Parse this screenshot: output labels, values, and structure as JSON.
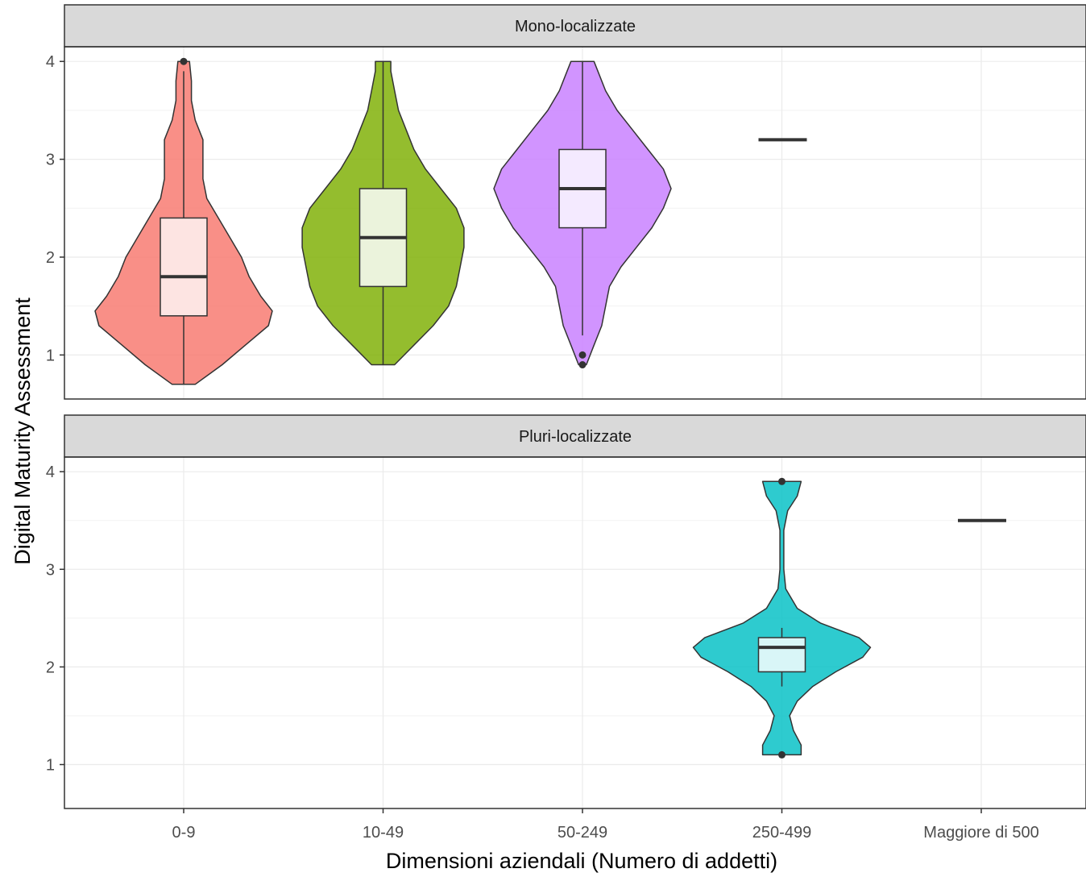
{
  "chart_data": {
    "type": "violin",
    "xlabel": "Dimensioni aziendali (Numero di addetti)",
    "ylabel": "Digital Maturity Assessment",
    "categories": [
      "0-9",
      "10-49",
      "50-249",
      "250-499",
      "Maggiore di 500"
    ],
    "y_ticks": [
      1,
      2,
      3,
      4
    ],
    "ylim": [
      0.55,
      4.15
    ],
    "grid": true,
    "legend": "none",
    "panels": [
      {
        "name": "Mono-localizzate",
        "groups": [
          {
            "category": "0-9",
            "color": "#f8766d",
            "box_fill": "#fde4e2",
            "box": {
              "q1": 1.4,
              "median": 1.8,
              "q3": 2.4,
              "whisker_low": 0.7,
              "whisker_high": 3.9
            },
            "outliers": [
              4.0
            ],
            "violin_range": [
              0.7,
              4.0
            ],
            "violin_profile": [
              [
                0.7,
                0.06
              ],
              [
                0.9,
                0.2
              ],
              [
                1.1,
                0.32
              ],
              [
                1.3,
                0.44
              ],
              [
                1.45,
                0.46
              ],
              [
                1.6,
                0.4
              ],
              [
                1.8,
                0.34
              ],
              [
                2.0,
                0.3
              ],
              [
                2.2,
                0.24
              ],
              [
                2.4,
                0.18
              ],
              [
                2.6,
                0.12
              ],
              [
                2.8,
                0.1
              ],
              [
                3.0,
                0.1
              ],
              [
                3.2,
                0.1
              ],
              [
                3.4,
                0.06
              ],
              [
                3.6,
                0.04
              ],
              [
                3.8,
                0.04
              ],
              [
                4.0,
                0.03
              ]
            ]
          },
          {
            "category": "10-49",
            "color": "#7cae00",
            "box_fill": "#ebf3dc",
            "box": {
              "q1": 1.7,
              "median": 2.2,
              "q3": 2.7,
              "whisker_low": 0.9,
              "whisker_high": 4.0
            },
            "outliers": [],
            "violin_range": [
              0.9,
              4.0
            ],
            "violin_profile": [
              [
                0.9,
                0.06
              ],
              [
                1.1,
                0.16
              ],
              [
                1.3,
                0.26
              ],
              [
                1.5,
                0.34
              ],
              [
                1.7,
                0.38
              ],
              [
                1.9,
                0.4
              ],
              [
                2.1,
                0.42
              ],
              [
                2.3,
                0.42
              ],
              [
                2.5,
                0.38
              ],
              [
                2.7,
                0.3
              ],
              [
                2.9,
                0.22
              ],
              [
                3.1,
                0.16
              ],
              [
                3.3,
                0.12
              ],
              [
                3.5,
                0.08
              ],
              [
                3.7,
                0.06
              ],
              [
                3.9,
                0.04
              ],
              [
                4.0,
                0.04
              ]
            ]
          },
          {
            "category": "50-249",
            "color": "#c77cff",
            "box_fill": "#f4eaff",
            "box": {
              "q1": 2.3,
              "median": 2.7,
              "q3": 3.1,
              "whisker_low": 1.2,
              "whisker_high": 4.0
            },
            "outliers": [
              1.0,
              0.9
            ],
            "violin_range": [
              0.9,
              4.0
            ],
            "violin_profile": [
              [
                0.9,
                0.02
              ],
              [
                1.1,
                0.06
              ],
              [
                1.3,
                0.1
              ],
              [
                1.5,
                0.12
              ],
              [
                1.7,
                0.14
              ],
              [
                1.9,
                0.2
              ],
              [
                2.1,
                0.28
              ],
              [
                2.3,
                0.36
              ],
              [
                2.5,
                0.42
              ],
              [
                2.7,
                0.46
              ],
              [
                2.9,
                0.42
              ],
              [
                3.1,
                0.34
              ],
              [
                3.3,
                0.26
              ],
              [
                3.5,
                0.18
              ],
              [
                3.7,
                0.12
              ],
              [
                3.9,
                0.08
              ],
              [
                4.0,
                0.06
              ]
            ]
          },
          {
            "category": "250-499",
            "color": "#00bfc4",
            "single_value": 3.2
          }
        ]
      },
      {
        "name": "Pluri-localizzate",
        "groups": [
          {
            "category": "250-499",
            "color": "#00bfc4",
            "box_fill": "#d9f6f7",
            "box": {
              "q1": 1.95,
              "median": 2.2,
              "q3": 2.3,
              "whisker_low": 1.8,
              "whisker_high": 2.4
            },
            "outliers": [
              3.9,
              1.1
            ],
            "violin_range": [
              1.1,
              3.9
            ],
            "violin_profile": [
              [
                1.1,
                0.1
              ],
              [
                1.2,
                0.1
              ],
              [
                1.35,
                0.06
              ],
              [
                1.5,
                0.04
              ],
              [
                1.65,
                0.08
              ],
              [
                1.8,
                0.16
              ],
              [
                1.95,
                0.28
              ],
              [
                2.1,
                0.42
              ],
              [
                2.2,
                0.46
              ],
              [
                2.3,
                0.4
              ],
              [
                2.45,
                0.2
              ],
              [
                2.6,
                0.08
              ],
              [
                2.8,
                0.02
              ],
              [
                3.0,
                0.01
              ],
              [
                3.2,
                0.01
              ],
              [
                3.4,
                0.01
              ],
              [
                3.6,
                0.03
              ],
              [
                3.75,
                0.08
              ],
              [
                3.9,
                0.1
              ]
            ]
          },
          {
            "category": "Maggiore di 500",
            "color": "#f8766d",
            "single_value": 3.5
          }
        ]
      }
    ]
  }
}
